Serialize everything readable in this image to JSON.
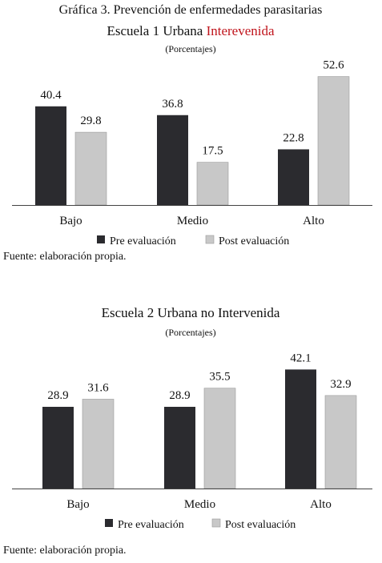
{
  "header": {
    "main_title": "Gráfica 3. Prevención de enfermedades parasitarias"
  },
  "chart1": {
    "title_prefix": "Escuela 1 Urbana ",
    "title_accent": "Interevenida",
    "subtitle": "(Porcentajes)",
    "source": "Fuente: elaboración propia."
  },
  "chart2": {
    "title": "Escuela 2 Urbana no Intervenida",
    "subtitle": "(Porcentajes)",
    "source": "Fuente: elaboración propia."
  },
  "colors": {
    "pre": "#2b2b2f",
    "post": "#c8c8c8",
    "accent": "#c0141c"
  },
  "chart_data": [
    {
      "type": "bar",
      "title": "Escuela 1 Urbana Interevenida",
      "subtitle": "(Porcentajes)",
      "categories": [
        "Bajo",
        "Medio",
        "Alto"
      ],
      "series": [
        {
          "name": "Pre evaluación",
          "values": [
            40.4,
            36.8,
            22.8
          ]
        },
        {
          "name": "Post evaluación",
          "values": [
            29.8,
            17.5,
            52.6
          ]
        }
      ],
      "value_labels": [
        [
          "40.4",
          "36.8",
          "22.8"
        ],
        [
          "29.8",
          "17.5",
          "52.6"
        ]
      ],
      "ylim": [
        0,
        60
      ],
      "grid": false,
      "legend": "bottom"
    },
    {
      "type": "bar",
      "title": "Escuela 2 Urbana no Intervenida",
      "subtitle": "(Porcentajes)",
      "categories": [
        "Bajo",
        "Medio",
        "Alto"
      ],
      "series": [
        {
          "name": "Pre evaluación",
          "values": [
            28.9,
            28.9,
            42.1
          ]
        },
        {
          "name": "Post evaluación",
          "values": [
            31.6,
            35.5,
            32.9
          ]
        }
      ],
      "value_labels": [
        [
          "28.9",
          "28.9",
          "42.1"
        ],
        [
          "31.6",
          "35.5",
          "32.9"
        ]
      ],
      "ylim": [
        0,
        45
      ],
      "grid": false,
      "legend": "bottom"
    }
  ]
}
